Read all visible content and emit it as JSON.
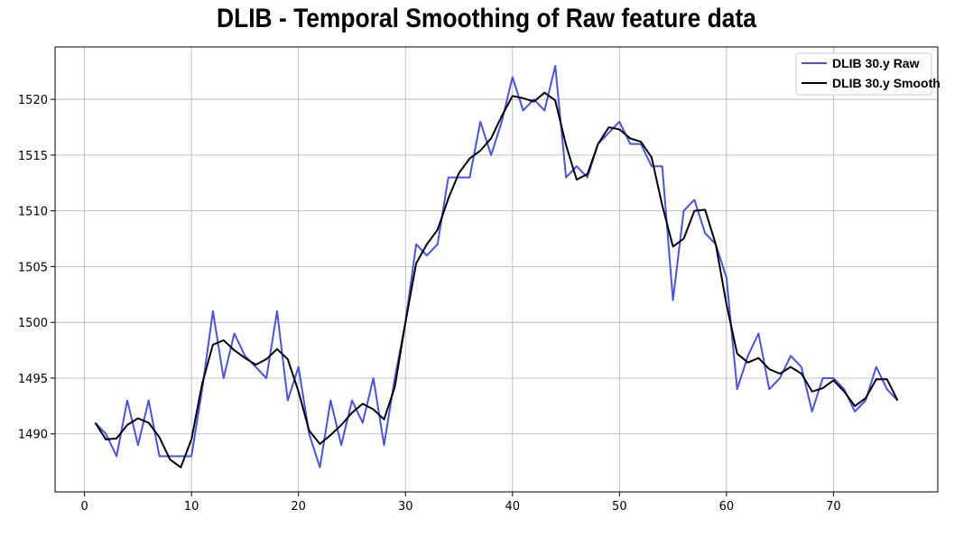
{
  "chart_data": {
    "type": "line",
    "title": "DLIB - Temporal Smoothing of Raw feature data",
    "xlabel": "",
    "ylabel": "",
    "xlim": [
      -2.75,
      79.75
    ],
    "ylim": [
      1484.8,
      1524.7
    ],
    "xticks": [
      0,
      10,
      20,
      30,
      40,
      50,
      60,
      70
    ],
    "yticks": [
      1490,
      1495,
      1500,
      1505,
      1510,
      1515,
      1520
    ],
    "grid": true,
    "legend_position": "top-right",
    "x": [
      1,
      2,
      3,
      4,
      5,
      6,
      7,
      8,
      9,
      10,
      11,
      12,
      13,
      14,
      15,
      16,
      17,
      18,
      19,
      20,
      21,
      22,
      23,
      24,
      25,
      26,
      27,
      28,
      29,
      30,
      31,
      32,
      33,
      34,
      35,
      36,
      37,
      38,
      39,
      40,
      41,
      42,
      43,
      44,
      45,
      46,
      47,
      48,
      49,
      50,
      51,
      52,
      53,
      54,
      55,
      56,
      57,
      58,
      59,
      60,
      61,
      62,
      63,
      64,
      65,
      66,
      67,
      68,
      69,
      70,
      71,
      72,
      73,
      74,
      75,
      76
    ],
    "series": [
      {
        "name": "DLIB 30.y Raw",
        "color": "#4a52e8",
        "values": [
          1491,
          1490,
          1488,
          1493,
          1489,
          1493,
          1488,
          1488,
          1488,
          1488,
          1494,
          1501,
          1495,
          1499,
          1497,
          1496,
          1495,
          1501,
          1493,
          1496,
          1490,
          1487,
          1493,
          1489,
          1493,
          1491,
          1495,
          1489,
          1495,
          1500,
          1507,
          1506,
          1507,
          1513,
          1513,
          1513,
          1518,
          1515,
          1518,
          1522,
          1519,
          1520,
          1519,
          1523,
          1513,
          1514,
          1513,
          1516,
          1517,
          1518,
          1516,
          1516,
          1514,
          1514,
          1502,
          1510,
          1511,
          1508,
          1507,
          1504,
          1494,
          1497,
          1499,
          1494,
          1495,
          1497,
          1496,
          1492,
          1495,
          1495,
          1494,
          1492,
          1493,
          1496,
          1494,
          1493
        ]
      },
      {
        "name": "DLIB 30.y Smooth",
        "color": "#000000",
        "values": [
          1491,
          1489.5,
          1489.6,
          1490.8,
          1491.4,
          1491,
          1489.7,
          1487.7,
          1487,
          1489.5,
          1494.5,
          1498,
          1498.4,
          1497.5,
          1496.8,
          1496.2,
          1496.7,
          1497.6,
          1496.7,
          1493.8,
          1490.3,
          1489.1,
          1489.9,
          1490.8,
          1491.9,
          1492.7,
          1492.2,
          1491.3,
          1494.2,
          1500,
          1505.3,
          1507,
          1508.3,
          1511.1,
          1513.4,
          1514.7,
          1515.4,
          1516.5,
          1518.5,
          1520.3,
          1520.1,
          1519.8,
          1520.6,
          1519.9,
          1515.9,
          1512.8,
          1513.3,
          1516,
          1517.5,
          1517.3,
          1516.5,
          1516.2,
          1514.8,
          1510.5,
          1506.8,
          1507.5,
          1510,
          1510.1,
          1507,
          1501.6,
          1497.2,
          1496.4,
          1496.8,
          1495.8,
          1495.4,
          1496,
          1495.4,
          1493.8,
          1494.1,
          1494.8,
          1493.8,
          1492.5,
          1493.2,
          1494.9,
          1494.9,
          1493
        ]
      }
    ]
  }
}
